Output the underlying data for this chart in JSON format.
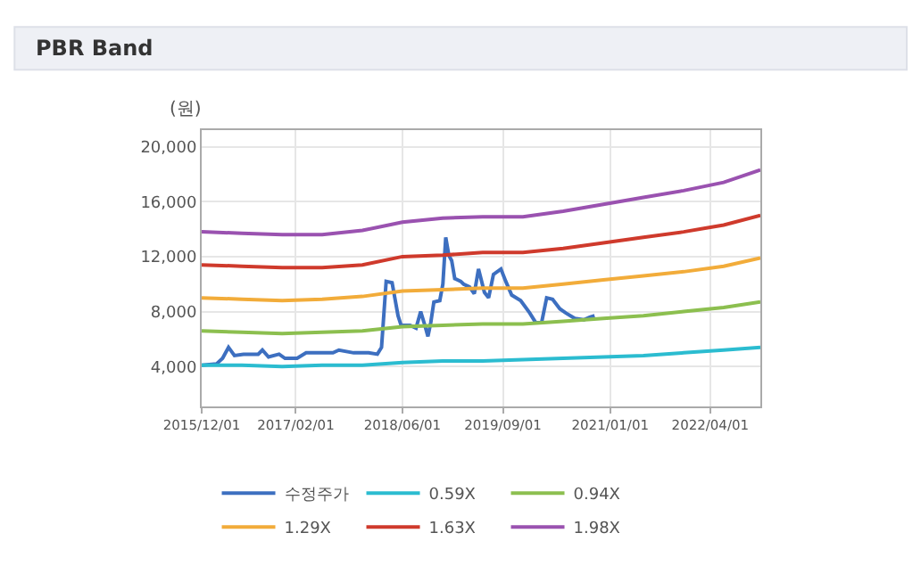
{
  "chart_data": {
    "type": "line",
    "title": "PBR Band",
    "ylabel": "(원)",
    "xlim": [
      "2015-12-01",
      "2022-11-15"
    ],
    "xticks": [
      {
        "value": "2015-12-01",
        "label": "2015/12/01"
      },
      {
        "value": "2017-02-01",
        "label": "2017/02/01"
      },
      {
        "value": "2018-06-01",
        "label": "2018/06/01"
      },
      {
        "value": "2019-09-01",
        "label": "2019/09/01"
      },
      {
        "value": "2021-01-01",
        "label": "2021/01/01"
      },
      {
        "value": "2022-04-01",
        "label": "2022/04/01"
      }
    ],
    "ylim": [
      1100,
      21200
    ],
    "yticks": [
      {
        "value": 4000,
        "label": "4,000"
      },
      {
        "value": 8000,
        "label": "8,000"
      },
      {
        "value": 12000,
        "label": "12,000"
      },
      {
        "value": 16000,
        "label": "16,000"
      },
      {
        "value": 20000,
        "label": "20,000"
      }
    ],
    "grid": true,
    "legend": "bottom",
    "marker": "none",
    "line_style": "solid",
    "series": [
      {
        "name": "수정주가",
        "color": "#3d6fc0",
        "x": [
          "2015-12-01",
          "2016-02-07",
          "2016-03-05",
          "2016-04-01",
          "2016-04-28",
          "2016-06-08",
          "2016-08-14",
          "2016-09-02",
          "2016-09-30",
          "2016-11-17",
          "2016-12-14",
          "2017-02-07",
          "2017-03-20",
          "2017-05-27",
          "2017-07-20",
          "2017-08-16",
          "2017-10-22",
          "2017-12-29",
          "2018-02-07",
          "2018-02-26",
          "2018-03-19",
          "2018-04-15",
          "2018-05-12",
          "2018-05-26",
          "2018-07-06",
          "2018-08-02",
          "2018-08-23",
          "2018-09-11",
          "2018-09-25",
          "2018-10-08",
          "2018-10-22",
          "2018-11-18",
          "2018-12-02",
          "2018-12-15",
          "2018-12-29",
          "2019-01-11",
          "2019-01-25",
          "2019-02-21",
          "2019-03-06",
          "2019-04-02",
          "2019-04-24",
          "2019-05-13",
          "2019-06-09",
          "2019-06-28",
          "2019-07-20",
          "2019-08-23",
          "2019-09-14",
          "2019-10-11",
          "2019-11-21",
          "2020-01-01",
          "2020-01-28",
          "2020-02-24",
          "2020-03-18",
          "2020-04-14",
          "2020-05-17",
          "2020-06-13",
          "2020-07-24",
          "2020-09-03",
          "2020-09-30",
          "2020-10-22"
        ],
        "values": [
          4100,
          4200,
          4600,
          5400,
          4800,
          4900,
          4900,
          5200,
          4700,
          4900,
          4600,
          4600,
          5000,
          5000,
          5000,
          5200,
          5000,
          5000,
          4900,
          5400,
          10200,
          10100,
          7700,
          7000,
          7000,
          6800,
          8000,
          7000,
          6200,
          7200,
          8700,
          8800,
          10000,
          13400,
          12100,
          11700,
          10400,
          10200,
          10000,
          9800,
          9300,
          11100,
          9400,
          9000,
          10700,
          11100,
          10200,
          9200,
          8800,
          7900,
          7200,
          7200,
          9000,
          8900,
          8200,
          7900,
          7500,
          7400,
          7600,
          7700
        ]
      },
      {
        "name": "0.59X",
        "color": "#2bbcd0",
        "values": [
          4100,
          4100,
          4000,
          4100,
          4100,
          4300,
          4400,
          4400,
          4500,
          4600,
          4700,
          4800,
          5000,
          5200,
          5400
        ]
      },
      {
        "name": "0.94X",
        "color": "#8cbf4f",
        "values": [
          6600,
          6500,
          6400,
          6500,
          6600,
          6900,
          7000,
          7100,
          7100,
          7300,
          7500,
          7700,
          8000,
          8300,
          8700
        ]
      },
      {
        "name": "1.29X",
        "color": "#f2ac3a",
        "values": [
          9000,
          8900,
          8800,
          8900,
          9100,
          9500,
          9600,
          9700,
          9700,
          10000,
          10300,
          10600,
          10900,
          11300,
          11900
        ]
      },
      {
        "name": "1.63X",
        "color": "#cf3a2c",
        "values": [
          11400,
          11300,
          11200,
          11200,
          11400,
          12000,
          12100,
          12300,
          12300,
          12600,
          13000,
          13400,
          13800,
          14300,
          15000
        ]
      },
      {
        "name": "1.98X",
        "color": "#9a52b0",
        "values": [
          13800,
          13700,
          13600,
          13600,
          13900,
          14500,
          14800,
          14900,
          14900,
          15300,
          15800,
          16300,
          16800,
          17400,
          18300
        ]
      }
    ],
    "x": [
      "2015-12-01",
      "2016-06-01",
      "2016-12-01",
      "2017-06-01",
      "2017-12-01",
      "2018-06-01",
      "2018-12-01",
      "2019-06-01",
      "2019-12-01",
      "2020-06-01",
      "2020-12-01",
      "2021-06-01",
      "2021-12-01",
      "2022-06-01",
      "2022-11-15"
    ]
  }
}
